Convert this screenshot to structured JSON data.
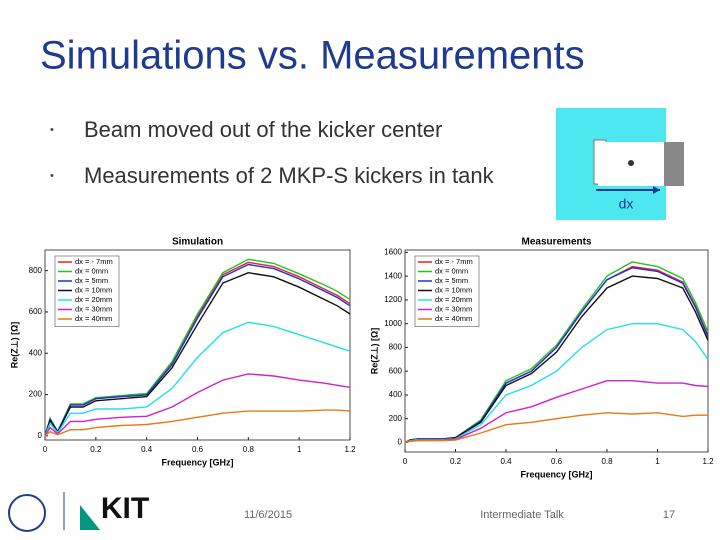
{
  "slide": {
    "title": "Simulations vs. Measurements",
    "bullets": [
      "Beam moved out of the kicker center",
      "Measurements of 2 MKP-S kickers in tank"
    ],
    "diagram_label": "dx",
    "logo": "KIT",
    "footer": {
      "date": "11/6/2015",
      "talk": "Intermediate Talk",
      "page": "17"
    }
  },
  "chart_data": [
    {
      "type": "line",
      "title": "Simulation",
      "x_label": "Frequency [GHz]",
      "y_label": "Re(Z⊥) [Ω]",
      "x": [
        0,
        0.02,
        0.05,
        0.1,
        0.15,
        0.2,
        0.3,
        0.4,
        0.5,
        0.6,
        0.7,
        0.8,
        0.9,
        1.0,
        1.1,
        1.15,
        1.2
      ],
      "xlim": [
        0,
        1.2
      ],
      "xticks": [
        0,
        0.2,
        0.4,
        0.6,
        0.8,
        1,
        1.2
      ],
      "ylim": [
        -20,
        900
      ],
      "yticks": [
        0,
        200,
        400,
        600,
        800
      ],
      "legend": "upper left",
      "series": [
        {
          "name": "dx = - 7mm",
          "color": "#e8202a",
          "values": [
            0,
            80,
            20,
            150,
            150,
            180,
            190,
            200,
            350,
            580,
            780,
            840,
            820,
            770,
            710,
            680,
            640
          ]
        },
        {
          "name": "dx =   0mm",
          "color": "#22c422",
          "values": [
            0,
            85,
            22,
            155,
            155,
            185,
            195,
            205,
            360,
            590,
            790,
            855,
            835,
            785,
            730,
            700,
            660
          ]
        },
        {
          "name": "dx =   5mm",
          "color": "#2030d8",
          "values": [
            0,
            80,
            20,
            150,
            150,
            180,
            190,
            198,
            345,
            570,
            770,
            830,
            810,
            760,
            700,
            670,
            630
          ]
        },
        {
          "name": "dx = 10mm",
          "color": "#111111",
          "values": [
            0,
            75,
            18,
            140,
            140,
            170,
            180,
            190,
            330,
            540,
            740,
            790,
            770,
            720,
            660,
            630,
            590
          ]
        },
        {
          "name": "dx = 20mm",
          "color": "#20e0e8",
          "values": [
            0,
            60,
            15,
            110,
            110,
            130,
            130,
            140,
            230,
            380,
            500,
            550,
            530,
            490,
            450,
            430,
            410
          ]
        },
        {
          "name": "dx = 30mm",
          "color": "#d020d0",
          "values": [
            0,
            40,
            10,
            70,
            70,
            80,
            90,
            95,
            140,
            210,
            270,
            300,
            290,
            270,
            255,
            245,
            235
          ]
        },
        {
          "name": "dx = 40mm",
          "color": "#e87a10",
          "values": [
            0,
            20,
            5,
            30,
            30,
            40,
            50,
            55,
            70,
            90,
            110,
            120,
            120,
            120,
            125,
            125,
            120
          ]
        }
      ]
    },
    {
      "type": "line",
      "title": "Measurements",
      "x_label": "Frequency [GHz]",
      "y_label": "Re(Z⊥) [Ω]",
      "x": [
        0,
        0.02,
        0.05,
        0.1,
        0.15,
        0.2,
        0.3,
        0.4,
        0.5,
        0.6,
        0.7,
        0.8,
        0.9,
        1.0,
        1.1,
        1.15,
        1.2
      ],
      "xlim": [
        0,
        1.2
      ],
      "xticks": [
        0,
        0.2,
        0.4,
        0.6,
        0.8,
        1,
        1.2
      ],
      "ylim": [
        -80,
        1620
      ],
      "yticks": [
        0,
        200,
        400,
        600,
        800,
        1000,
        1200,
        1400,
        1600
      ],
      "legend": "upper left",
      "series": [
        {
          "name": "dx = - 7mm",
          "color": "#e8202a",
          "values": [
            0,
            20,
            30,
            30,
            30,
            40,
            180,
            500,
            600,
            800,
            1100,
            1370,
            1480,
            1450,
            1350,
            1150,
            900
          ]
        },
        {
          "name": "dx =   0mm",
          "color": "#22c422",
          "values": [
            0,
            20,
            30,
            30,
            30,
            40,
            190,
            520,
            620,
            820,
            1120,
            1400,
            1520,
            1480,
            1380,
            1180,
            930
          ]
        },
        {
          "name": "dx =   5mm",
          "color": "#2030d8",
          "values": [
            0,
            20,
            30,
            30,
            30,
            40,
            180,
            500,
            600,
            800,
            1100,
            1370,
            1470,
            1440,
            1340,
            1140,
            890
          ]
        },
        {
          "name": "dx = 10mm",
          "color": "#111111",
          "values": [
            0,
            20,
            30,
            30,
            30,
            40,
            170,
            480,
            580,
            760,
            1060,
            1300,
            1400,
            1380,
            1300,
            1100,
            860
          ]
        },
        {
          "name": "dx = 20mm",
          "color": "#20e0e8",
          "values": [
            0,
            15,
            25,
            25,
            25,
            30,
            150,
            400,
            480,
            600,
            800,
            950,
            1000,
            1000,
            950,
            850,
            700
          ]
        },
        {
          "name": "dx = 30mm",
          "color": "#d020d0",
          "values": [
            0,
            10,
            20,
            20,
            20,
            25,
            120,
            250,
            300,
            380,
            450,
            520,
            520,
            500,
            500,
            480,
            470
          ]
        },
        {
          "name": "dx = 40mm",
          "color": "#e87a10",
          "values": [
            0,
            10,
            15,
            15,
            15,
            20,
            80,
            150,
            170,
            200,
            230,
            250,
            240,
            250,
            220,
            230,
            230
          ]
        }
      ]
    }
  ]
}
